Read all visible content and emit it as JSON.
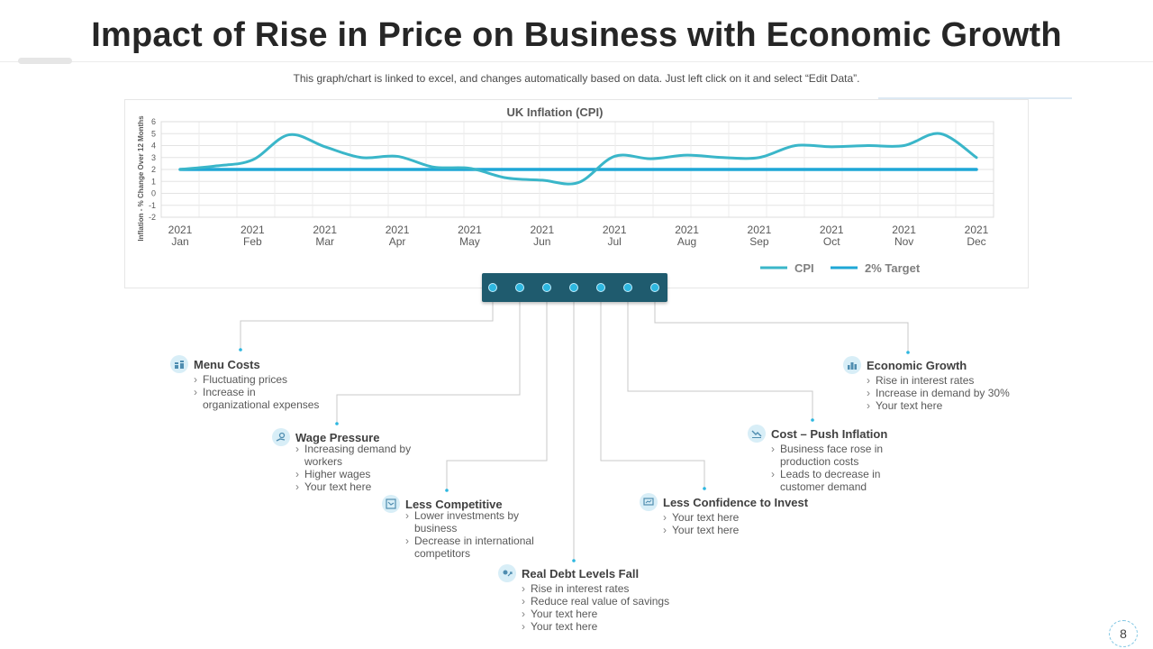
{
  "slide": {
    "title": "Impact of Rise in Price on Business with Economic Growth",
    "subtitle": "This graph/chart is linked to excel, and changes automatically based on data. Just left click on it and select “Edit Data”.",
    "page_number": "8"
  },
  "colors": {
    "accent": "#2db7e0",
    "series": "#3ab6c9",
    "hub": "#1f5b6e",
    "connector": "#c8c8c8"
  },
  "chart_data": {
    "type": "line",
    "title": "UK Inflation (CPI)",
    "ylabel": "Inflation - % Change Over 12 Months",
    "xlabel": "",
    "ylim": [
      -2,
      6
    ],
    "yticks": [
      -2,
      -1,
      0,
      1,
      2,
      3,
      4,
      5,
      6
    ],
    "grid": true,
    "legend_position": "bottom-right",
    "categories": [
      [
        "2021",
        "Jan"
      ],
      [
        "2021",
        "Feb"
      ],
      [
        "2021",
        "Mar"
      ],
      [
        "2021",
        "Apr"
      ],
      [
        "2021",
        "May"
      ],
      [
        "2021",
        "Jun"
      ],
      [
        "2021",
        "Jul"
      ],
      [
        "2021",
        "Aug"
      ],
      [
        "2021",
        "Sep"
      ],
      [
        "2021",
        "Oct"
      ],
      [
        "2021",
        "Nov"
      ],
      [
        "2021",
        "Dec"
      ]
    ],
    "x": [
      0,
      0.5,
      1,
      1.5,
      2,
      2.5,
      3,
      3.5,
      4,
      4.5,
      5,
      5.5,
      6,
      6.5,
      7,
      7.5,
      8,
      8.5,
      9,
      9.5,
      10,
      10.5,
      11
    ],
    "series": [
      {
        "name": "CPI",
        "color": "#3ab6c9",
        "values": [
          2.0,
          2.3,
          2.8,
          4.9,
          3.9,
          3.0,
          3.1,
          2.2,
          2.1,
          1.3,
          1.1,
          0.9,
          3.1,
          2.9,
          3.2,
          3.0,
          3.0,
          4.0,
          3.9,
          4.0,
          4.0,
          5.0,
          3.0
        ]
      },
      {
        "name": "2% Target",
        "color": "#1fa7d6",
        "values": [
          2,
          2,
          2,
          2,
          2,
          2,
          2,
          2,
          2,
          2,
          2,
          2,
          2,
          2,
          2,
          2,
          2,
          2,
          2,
          2,
          2,
          2,
          2
        ]
      }
    ]
  },
  "items": [
    {
      "id": "menu-costs",
      "icon": "coins-icon",
      "title": "Menu Costs",
      "bullets": [
        "Fluctuating prices",
        "Increase in organizational expenses"
      ]
    },
    {
      "id": "wage-pressure",
      "icon": "hand-money-icon",
      "title": "Wage Pressure",
      "bullets": [
        "Increasing demand by workers",
        "Higher wages",
        "Your text here"
      ]
    },
    {
      "id": "less-competitive",
      "icon": "chart-down-icon",
      "title": "Less Competitive",
      "bullets": [
        "Lower investments by business",
        "Decrease in international competitors"
      ]
    },
    {
      "id": "real-debt",
      "icon": "debt-icon",
      "title": "Real Debt Levels Fall",
      "bullets": [
        "Rise in interest rates",
        "Reduce real value of savings",
        "Your text here",
        "Your text here"
      ]
    },
    {
      "id": "less-confidence",
      "icon": "presentation-icon",
      "title": "Less Confidence to Invest",
      "bullets": [
        "Your text here",
        "Your text here"
      ]
    },
    {
      "id": "cost-push",
      "icon": "trend-down-icon",
      "title": "Cost – Push Inflation",
      "bullets": [
        "Business face rose in production costs",
        "Leads to decrease in customer demand"
      ]
    },
    {
      "id": "economic-growth",
      "icon": "city-growth-icon",
      "title": "Economic Growth",
      "bullets": [
        "Rise in interest rates",
        "Increase in demand  by 30%",
        "Your text here"
      ]
    }
  ]
}
